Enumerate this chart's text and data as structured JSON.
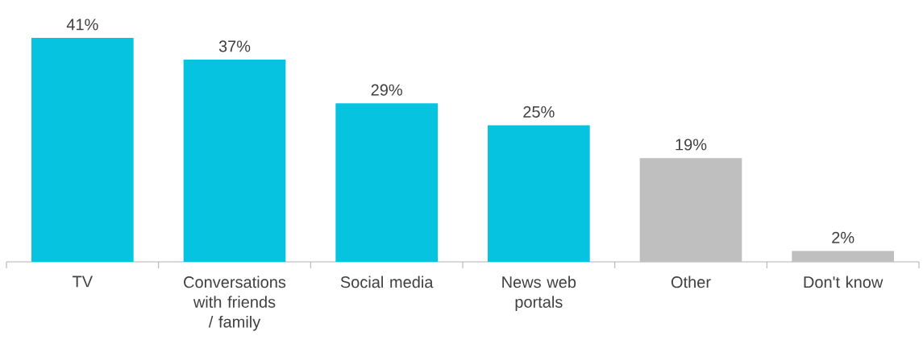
{
  "chart_data": {
    "type": "bar",
    "categories": [
      "TV",
      "Conversations with friends / family",
      "Social media",
      "News web portals",
      "Other",
      "Don't know"
    ],
    "values": [
      41,
      37,
      29,
      25,
      19,
      2
    ],
    "value_labels": [
      "41%",
      "37%",
      "29%",
      "25%",
      "19%",
      "2%"
    ],
    "colors": [
      "#06c3e0",
      "#06c3e0",
      "#06c3e0",
      "#06c3e0",
      "#bfbfbf",
      "#bfbfbf"
    ]
  }
}
